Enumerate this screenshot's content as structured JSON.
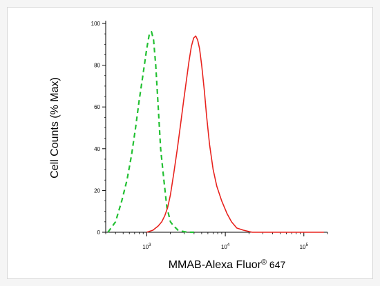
{
  "chart_data": {
    "type": "line",
    "title": "",
    "xlabel": "MMAB-Alexa Fluor",
    "xlabel_mark": "®",
    "xlabel_suffix": " 647",
    "ylabel": "Cell Counts (% Max)",
    "xscale": "log",
    "xlim": [
      300,
      200000
    ],
    "ylim": [
      0,
      100
    ],
    "grid": false,
    "legend": "none",
    "y_ticks": [
      0,
      20,
      40,
      60,
      80,
      100
    ],
    "x_ticks": [
      {
        "value": 1000,
        "base": "10",
        "exp": "3"
      },
      {
        "value": 10000,
        "base": "10",
        "exp": "4"
      },
      {
        "value": 100000,
        "base": "10",
        "exp": "5"
      }
    ],
    "series": [
      {
        "color": "#22c032",
        "style": "dashed",
        "x": [
          320,
          400,
          480,
          560,
          640,
          720,
          800,
          900,
          1000,
          1080,
          1150,
          1220,
          1300,
          1400,
          1500,
          1650,
          1800,
          2000,
          2200,
          2500,
          2800,
          3300,
          4000
        ],
        "y": [
          0,
          5,
          15,
          25,
          37,
          50,
          63,
          76,
          88,
          95,
          96,
          92,
          80,
          60,
          40,
          25,
          12,
          5,
          3,
          1,
          0.5,
          0,
          0
        ]
      },
      {
        "color": "#e8231e",
        "style": "solid",
        "x": [
          1000,
          1200,
          1400,
          1550,
          1700,
          1850,
          2000,
          2200,
          2450,
          2700,
          2950,
          3200,
          3450,
          3700,
          3950,
          4200,
          4450,
          4700,
          5000,
          5400,
          5800,
          6300,
          7000,
          7800,
          9000,
          10500,
          12000,
          14000,
          17000,
          22000,
          30000,
          60000,
          180000
        ],
        "y": [
          0,
          1,
          3,
          5,
          8,
          12,
          18,
          28,
          40,
          52,
          63,
          73,
          82,
          89,
          93,
          94,
          92,
          88,
          80,
          68,
          55,
          42,
          30,
          22,
          15,
          9,
          5,
          2,
          1,
          0,
          0,
          0,
          0
        ]
      }
    ]
  }
}
